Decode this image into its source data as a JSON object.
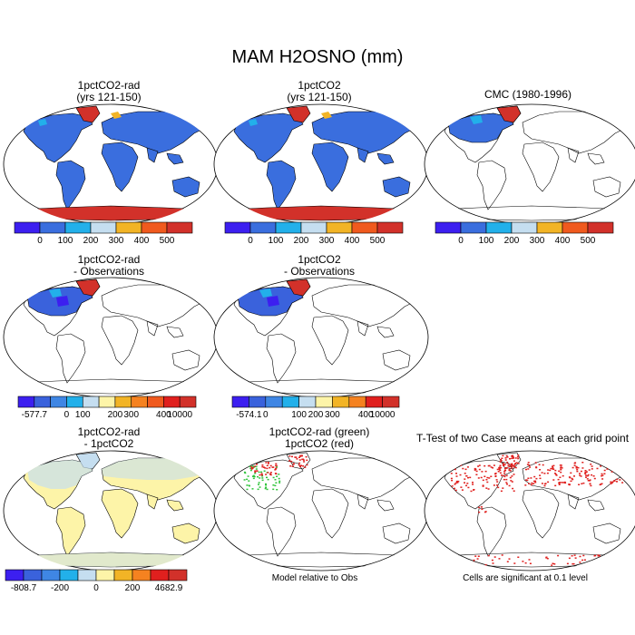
{
  "title": "MAM H2OSNO (mm)",
  "colors": {
    "c7": [
      "#3c1ff0",
      "#3a6ede",
      "#22b0ea",
      "#c5def0",
      "#f2b426",
      "#f05a1e",
      "#d2312a"
    ],
    "c11": [
      "#3c1ff0",
      "#3a62dc",
      "#3f86e4",
      "#22b0ea",
      "#c5def0",
      "#fdf4a8",
      "#f2b426",
      "#f58220",
      "#f05a1e",
      "#e0201e",
      "#d2312a"
    ],
    "c10": [
      "#3c1ff0",
      "#3a62dc",
      "#3f86e4",
      "#22b0ea",
      "#c5def0",
      "#fdf4a8",
      "#f2b426",
      "#f58220",
      "#e0201e",
      "#d2312a"
    ],
    "land_snow": "#3a6ede",
    "land_warm": "#fdf4a8",
    "land_hot": "#d2312a",
    "sig_red": "#e0201e",
    "sig_green": "#2ec43a"
  },
  "panels": [
    {
      "title1": "1pctCO2-rad",
      "title2": "(yrs 121-150)",
      "ticks": [
        "0",
        "100",
        "200",
        "300",
        "400",
        "500"
      ]
    },
    {
      "title1": "1pctCO2",
      "title2": "(yrs 121-150)",
      "ticks": [
        "0",
        "100",
        "200",
        "300",
        "400",
        "500"
      ]
    },
    {
      "title1": "CMC (1980-1996)",
      "title2": "",
      "ticks": [
        "0",
        "100",
        "200",
        "300",
        "400",
        "500"
      ]
    },
    {
      "title1": "1pctCO2-rad",
      "title2": "- Observations",
      "ticks": [
        "-577.7",
        "0",
        "100",
        "200",
        "300",
        "400",
        "10000"
      ]
    },
    {
      "title1": "1pctCO2",
      "title2": "- Observations",
      "ticks": [
        "-574.1",
        "0",
        "100",
        "200",
        "300",
        "400",
        "10000"
      ]
    },
    {
      "title1": "1pctCO2-rad",
      "title2": "- 1pctCO2",
      "ticks": [
        "-808.7",
        "-200",
        "0",
        "200",
        "4682.9"
      ]
    },
    {
      "title1": "1pctCO2-rad (green)",
      "title2": "1pctCO2 (red)",
      "ticks": []
    },
    {
      "title1": "T-Test of two Case means at each grid point",
      "title2": "",
      "ticks": []
    }
  ],
  "notes": {
    "model_rel": "Model relative to Obs",
    "cells_sig": "Cells are significant at 0.1 level"
  }
}
